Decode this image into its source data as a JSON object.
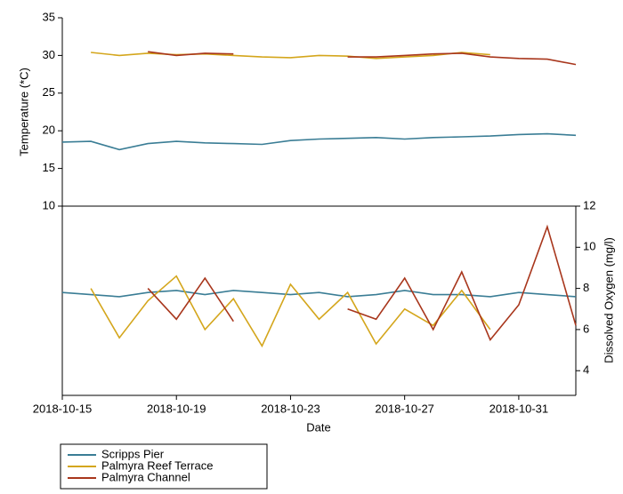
{
  "chart_data": [
    {
      "type": "line",
      "ylabel": "Temperature (*C)",
      "ylim": [
        10,
        35
      ],
      "yticks": [
        10,
        15,
        20,
        25,
        30,
        35
      ],
      "x": [
        "2018-10-15",
        "2018-10-16",
        "2018-10-17",
        "2018-10-18",
        "2018-10-19",
        "2018-10-20",
        "2018-10-21",
        "2018-10-22",
        "2018-10-23",
        "2018-10-24",
        "2018-10-25",
        "2018-10-26",
        "2018-10-27",
        "2018-10-28",
        "2018-10-29",
        "2018-10-30",
        "2018-10-31",
        "2018-11-01",
        "2018-11-02"
      ],
      "series": [
        {
          "name": "Scripps Pier",
          "color": "#3a7d95",
          "values": [
            18.5,
            18.6,
            17.5,
            18.3,
            18.6,
            18.4,
            18.3,
            18.2,
            18.7,
            18.9,
            19.0,
            19.1,
            18.9,
            19.1,
            19.2,
            19.3,
            19.5,
            19.6,
            19.4
          ]
        },
        {
          "name": "Palmyra Reef Terrace",
          "color": "#d4a61c",
          "values": [
            null,
            30.4,
            30.0,
            30.3,
            30.1,
            30.2,
            30.0,
            29.8,
            29.7,
            30.0,
            29.9,
            29.6,
            29.8,
            30.0,
            30.4,
            30.1,
            null,
            null,
            null
          ]
        },
        {
          "name": "Palmyra Channel",
          "color": "#a8361c",
          "values": [
            null,
            null,
            null,
            30.5,
            30.0,
            30.3,
            30.2,
            null,
            null,
            null,
            29.8,
            29.8,
            30.0,
            30.2,
            30.3,
            29.8,
            29.6,
            29.5,
            28.8
          ]
        }
      ]
    },
    {
      "type": "line",
      "xlabel": "Date",
      "xlim": [
        "2018-10-15",
        "2018-11-02"
      ],
      "xticks": [
        "2018-10-15",
        "2018-10-19",
        "2018-10-23",
        "2018-10-27",
        "2018-10-31"
      ],
      "y2label": "Dissolved Oxygen (mg/l)",
      "y2lim": [
        2.8,
        12
      ],
      "y2ticks": [
        4,
        6,
        8,
        10,
        12
      ],
      "series": [
        {
          "axis": "y2",
          "color": "#3a7d95",
          "values": [
            7.8,
            7.7,
            7.6,
            7.8,
            7.9,
            7.7,
            7.9,
            7.8,
            7.7,
            7.8,
            7.6,
            7.7,
            7.9,
            7.7,
            7.7,
            7.6,
            7.8,
            7.7,
            7.6
          ]
        },
        {
          "axis": "y2",
          "color": "#d4a61c",
          "values": [
            null,
            8.0,
            5.6,
            7.4,
            8.6,
            6.0,
            7.5,
            5.2,
            8.2,
            6.5,
            7.8,
            5.3,
            7.0,
            6.2,
            7.9,
            6.0,
            null,
            null,
            null
          ]
        },
        {
          "axis": "y2",
          "color": "#a8361c",
          "values": [
            null,
            null,
            null,
            8.0,
            6.5,
            8.5,
            6.4,
            null,
            null,
            null,
            7.0,
            6.5,
            8.5,
            6.0,
            8.8,
            5.5,
            7.2,
            11.0,
            6.2
          ]
        }
      ]
    }
  ]
}
